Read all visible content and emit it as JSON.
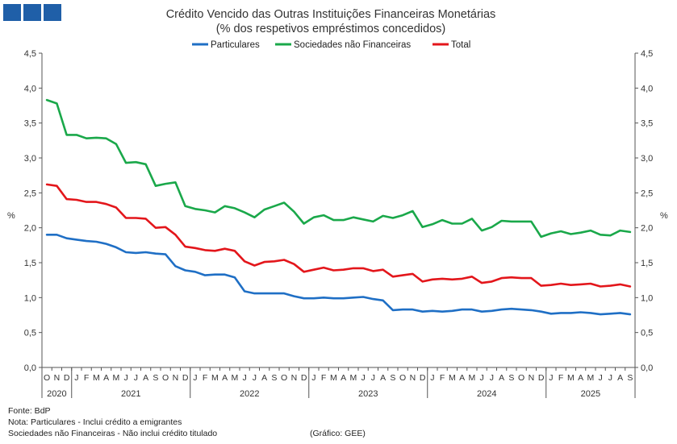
{
  "chart_data": {
    "type": "line",
    "title": "Crédito Vencido das Outras Instituições Financeiras Monetárias",
    "subtitle": "(% dos respetivos empréstimos concedidos)",
    "ylabel_left": "%",
    "ylabel_right": "%",
    "ylim": [
      0,
      4.5
    ],
    "yticks": [
      "0,0",
      "0,5",
      "1,0",
      "1,5",
      "2,0",
      "2,5",
      "3,0",
      "3,5",
      "4,0",
      "4,5"
    ],
    "yticks_values": [
      0,
      0.5,
      1.0,
      1.5,
      2.0,
      2.5,
      3.0,
      3.5,
      4.0,
      4.5
    ],
    "months": [
      "O",
      "N",
      "D",
      "J",
      "F",
      "M",
      "A",
      "M",
      "J",
      "J",
      "A",
      "S",
      "O",
      "N",
      "D",
      "J",
      "F",
      "M",
      "A",
      "M",
      "J",
      "J",
      "A",
      "S",
      "O",
      "N",
      "D",
      "J",
      "F",
      "M",
      "A",
      "M",
      "J",
      "J",
      "A",
      "S",
      "O",
      "N",
      "D",
      "J",
      "F",
      "M",
      "A",
      "M",
      "J",
      "J",
      "A",
      "S",
      "O",
      "N",
      "D",
      "J",
      "F",
      "M",
      "A",
      "M",
      "J",
      "J",
      "A",
      "S"
    ],
    "years": [
      {
        "label": "2020",
        "start": 0,
        "count": 3
      },
      {
        "label": "2021",
        "start": 3,
        "count": 12
      },
      {
        "label": "2022",
        "start": 15,
        "count": 12
      },
      {
        "label": "2023",
        "start": 27,
        "count": 12
      },
      {
        "label": "2024",
        "start": 39,
        "count": 12
      },
      {
        "label": "2025",
        "start": 51,
        "count": 9
      }
    ],
    "series": [
      {
        "name": "Particulares",
        "color": "#1f6fc5",
        "values": [
          1.9,
          1.9,
          1.85,
          1.83,
          1.81,
          1.8,
          1.77,
          1.72,
          1.65,
          1.64,
          1.65,
          1.63,
          1.62,
          1.45,
          1.39,
          1.37,
          1.32,
          1.33,
          1.33,
          1.29,
          1.09,
          1.06,
          1.06,
          1.06,
          1.06,
          1.02,
          0.99,
          0.99,
          1.0,
          0.99,
          0.99,
          1.0,
          1.01,
          0.98,
          0.96,
          0.82,
          0.83,
          0.83,
          0.8,
          0.81,
          0.8,
          0.81,
          0.83,
          0.83,
          0.8,
          0.81,
          0.83,
          0.84,
          0.83,
          0.82,
          0.8,
          0.77,
          0.78,
          0.78,
          0.79,
          0.78,
          0.76,
          0.77,
          0.78,
          0.76
        ]
      },
      {
        "name": "Sociedades não Financeiras",
        "color": "#1aa84a",
        "values": [
          3.83,
          3.78,
          3.33,
          3.33,
          3.28,
          3.29,
          3.28,
          3.2,
          2.93,
          2.94,
          2.91,
          2.6,
          2.63,
          2.65,
          2.31,
          2.27,
          2.25,
          2.22,
          2.31,
          2.28,
          2.22,
          2.15,
          2.26,
          2.31,
          2.36,
          2.23,
          2.06,
          2.15,
          2.18,
          2.11,
          2.11,
          2.15,
          2.12,
          2.09,
          2.17,
          2.14,
          2.18,
          2.24,
          2.01,
          2.05,
          2.11,
          2.06,
          2.06,
          2.13,
          1.96,
          2.01,
          2.1,
          2.09,
          2.09,
          2.09,
          1.87,
          1.92,
          1.95,
          1.91,
          1.93,
          1.96,
          1.9,
          1.89,
          1.96,
          1.94
        ]
      },
      {
        "name": "Total",
        "color": "#e3161b",
        "values": [
          2.62,
          2.6,
          2.41,
          2.4,
          2.37,
          2.37,
          2.34,
          2.29,
          2.14,
          2.14,
          2.13,
          2.0,
          2.01,
          1.9,
          1.73,
          1.71,
          1.68,
          1.67,
          1.7,
          1.67,
          1.52,
          1.46,
          1.51,
          1.52,
          1.54,
          1.48,
          1.37,
          1.4,
          1.43,
          1.39,
          1.4,
          1.42,
          1.42,
          1.38,
          1.4,
          1.3,
          1.32,
          1.34,
          1.23,
          1.26,
          1.27,
          1.26,
          1.27,
          1.3,
          1.21,
          1.23,
          1.28,
          1.29,
          1.28,
          1.28,
          1.17,
          1.18,
          1.2,
          1.18,
          1.19,
          1.2,
          1.16,
          1.17,
          1.19,
          1.16
        ]
      }
    ],
    "legend_position": "top-center",
    "grid": false
  },
  "footer": {
    "source": "Fonte: BdP",
    "note1": "Nota: Particulares - Inclui crédito a emigrantes",
    "note2": "Sociedades não Financeiras - Não inclui crédito titulado",
    "credit": "(Gráfico: GEE)"
  },
  "logo": {
    "color": "#1f5fa8"
  }
}
